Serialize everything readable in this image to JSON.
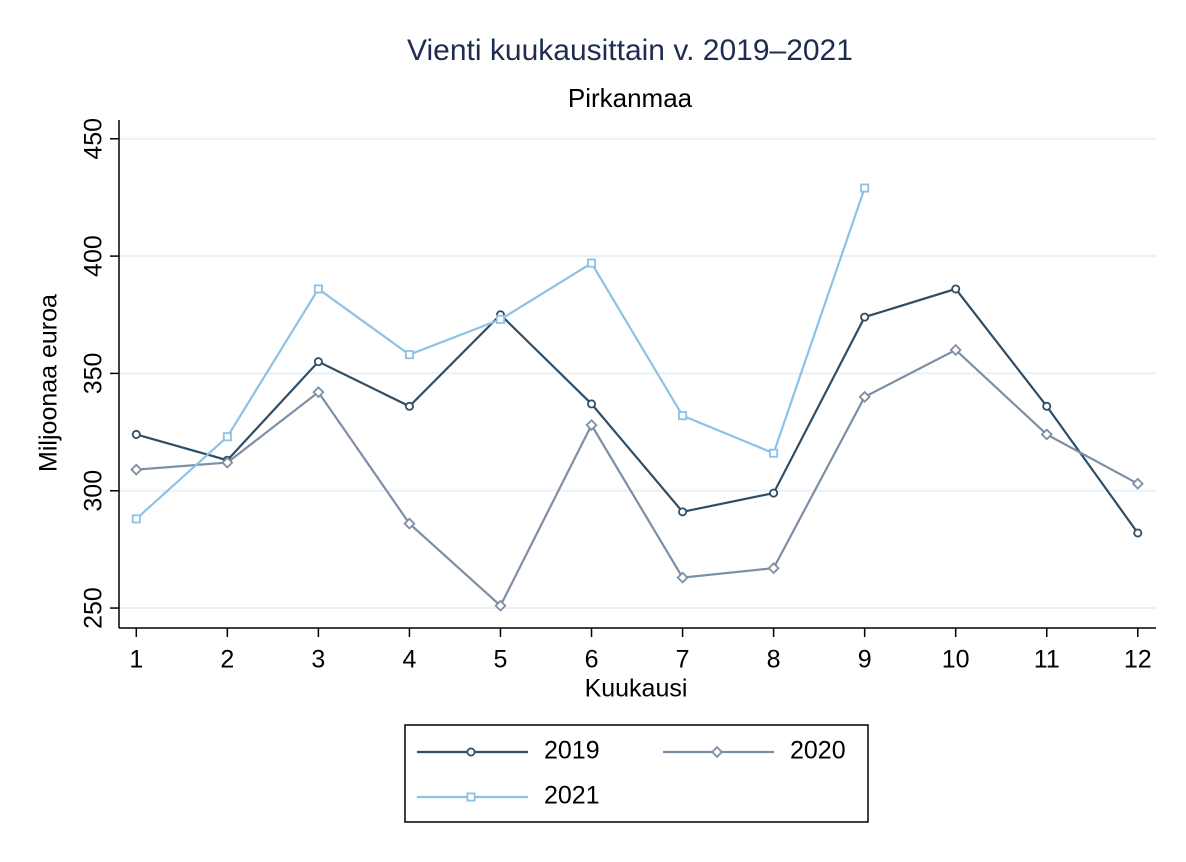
{
  "chart_data": {
    "type": "line",
    "title": "Vienti kuukausittain v. 2019–2021",
    "subtitle": "Pirkanmaa",
    "x_label": "Kuukausi",
    "y_label": "Miljoonaa euroa",
    "x": [
      1,
      2,
      3,
      4,
      5,
      6,
      7,
      8,
      9,
      10,
      11,
      12
    ],
    "xlim": [
      0.81,
      12.2
    ],
    "xticks": [
      1,
      2,
      3,
      4,
      5,
      6,
      7,
      8,
      9,
      10,
      11,
      12
    ],
    "ylim": [
      241.5,
      458
    ],
    "yticks": [
      250,
      300,
      350,
      400,
      450
    ],
    "grid": true,
    "legend_position": "bottom",
    "series": [
      {
        "name": "2019",
        "color": "#2f4e66",
        "marker": "circle",
        "values": [
          324,
          313,
          355,
          336,
          375,
          337,
          291,
          299,
          374,
          386,
          336,
          282
        ]
      },
      {
        "name": "2020",
        "color": "#7d8fa5",
        "marker": "diamond",
        "values": [
          309,
          312,
          342,
          286,
          251,
          328,
          263,
          267,
          340,
          360,
          324,
          303
        ]
      },
      {
        "name": "2021",
        "color": "#8cc2e6",
        "marker": "square",
        "values": [
          288,
          323,
          386,
          358,
          373,
          397,
          332,
          316,
          429,
          null,
          null,
          null
        ]
      }
    ]
  }
}
